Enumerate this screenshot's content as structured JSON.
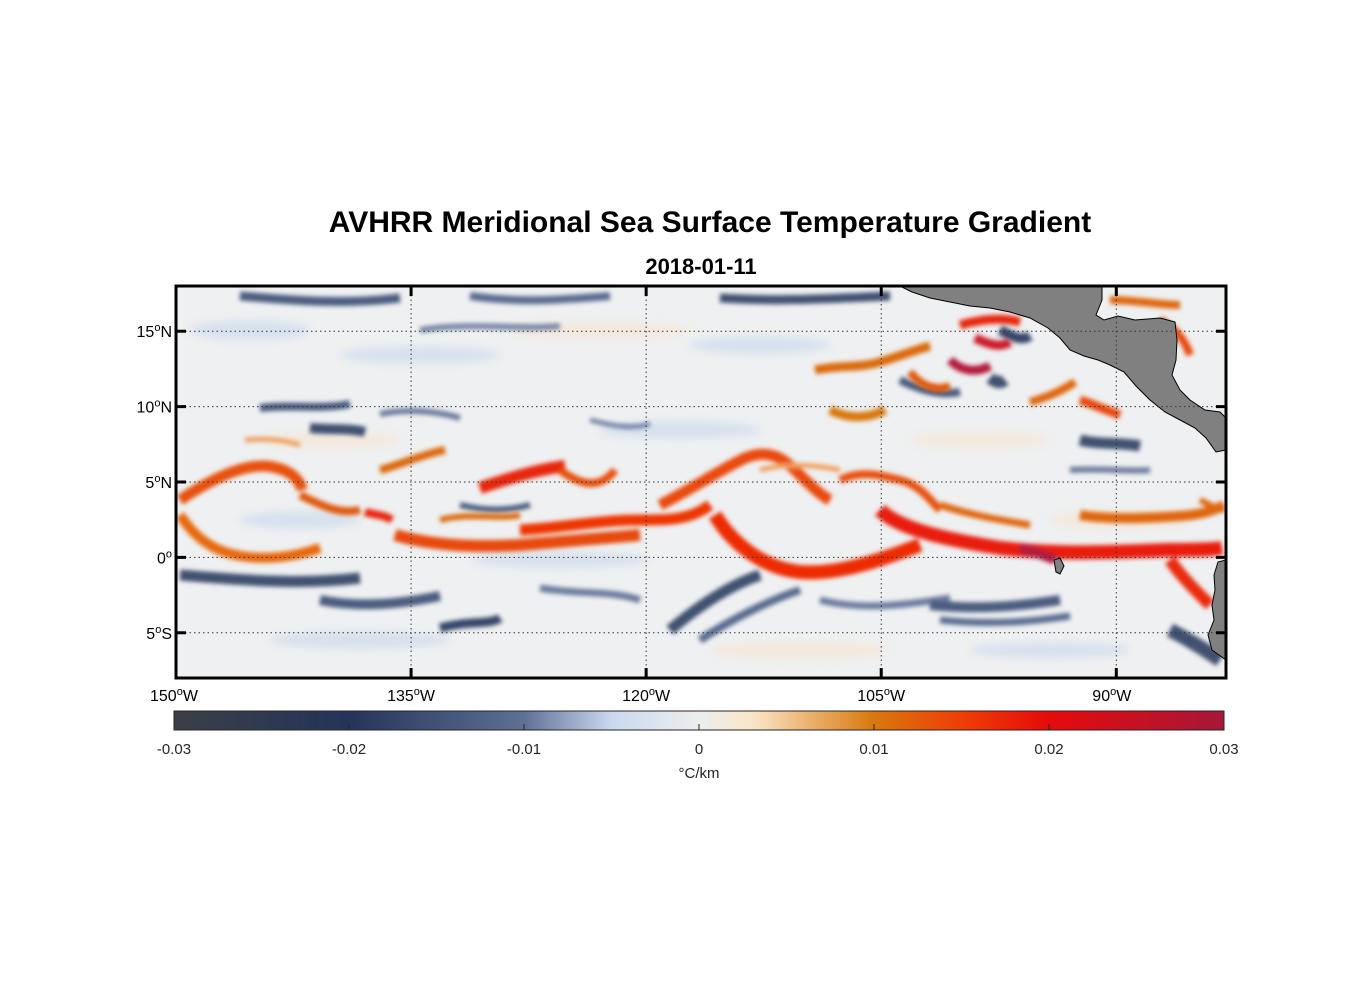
{
  "title": "AVHRR Meridional Sea Surface Temperature Gradient",
  "subtitle": "2018-01-11",
  "map": {
    "lon_range": [
      -150,
      -83
    ],
    "lat_range": [
      -8,
      18
    ],
    "lon_ticks": [
      {
        "lon": -150,
        "label": "150",
        "sup": "o",
        "hem": "W"
      },
      {
        "lon": -135,
        "label": "135",
        "sup": "o",
        "hem": "W"
      },
      {
        "lon": -120,
        "label": "120",
        "sup": "o",
        "hem": "W"
      },
      {
        "lon": -105,
        "label": "105",
        "sup": "o",
        "hem": "W"
      },
      {
        "lon": -90,
        "label": "90",
        "sup": "o",
        "hem": "W"
      }
    ],
    "lat_ticks": [
      {
        "lat": 15,
        "label": "15",
        "sup": "o",
        "hem": "N"
      },
      {
        "lat": 10,
        "label": "10",
        "sup": "o",
        "hem": "N"
      },
      {
        "lat": 5,
        "label": "5",
        "sup": "o",
        "hem": "N"
      },
      {
        "lat": 0,
        "label": "0",
        "sup": "o",
        "hem": ""
      },
      {
        "lat": -5,
        "label": "5",
        "sup": "o",
        "hem": "S"
      }
    ],
    "land_color": "#808080",
    "front_color": "#e8280c",
    "cold_color": "#2e3f63"
  },
  "colorbar": {
    "min": -0.03,
    "max": 0.03,
    "ticks": [
      {
        "value": -0.03,
        "label": "-0.03"
      },
      {
        "value": -0.02,
        "label": "-0.02"
      },
      {
        "value": -0.01,
        "label": "-0.01"
      },
      {
        "value": 0,
        "label": "0"
      },
      {
        "value": 0.01,
        "label": "0.01"
      },
      {
        "value": 0.02,
        "label": "0.02"
      },
      {
        "value": 0.03,
        "label": "0.03"
      }
    ],
    "unit_label": "°C/km",
    "stops": [
      {
        "value": -0.03,
        "color": "#3b3f46"
      },
      {
        "value": -0.02,
        "color": "#24345a"
      },
      {
        "value": -0.01,
        "color": "#5f7096"
      },
      {
        "value": -0.005,
        "color": "#cad9ee"
      },
      {
        "value": 0,
        "color": "#eceeee"
      },
      {
        "value": 0.003,
        "color": "#fbe6c9"
      },
      {
        "value": 0.01,
        "color": "#d9780c"
      },
      {
        "value": 0.015,
        "color": "#ef3e06"
      },
      {
        "value": 0.02,
        "color": "#e60b0b"
      },
      {
        "value": 0.03,
        "color": "#a5173a"
      }
    ]
  }
}
